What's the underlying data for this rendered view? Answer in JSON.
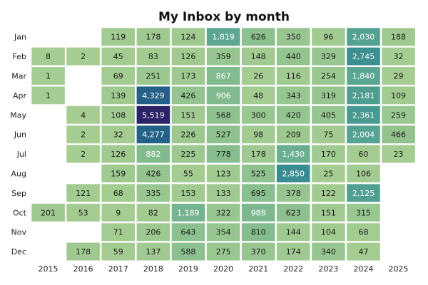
{
  "chart_data": {
    "type": "heatmap",
    "title": "My Inbox by month",
    "xlabel": "",
    "ylabel": "",
    "x_categories": [
      "2015",
      "2016",
      "2017",
      "2018",
      "2019",
      "2020",
      "2021",
      "2022",
      "2023",
      "2024",
      "2025"
    ],
    "y_categories": [
      "Jan",
      "Feb",
      "Mar",
      "Apr",
      "May",
      "Jun",
      "Jul",
      "Aug",
      "Sep",
      "Oct",
      "Nov",
      "Dec"
    ],
    "values": [
      [
        null,
        null,
        119,
        178,
        124,
        1819,
        626,
        350,
        96,
        2030,
        188
      ],
      [
        8,
        2,
        45,
        83,
        126,
        359,
        148,
        440,
        329,
        2745,
        32
      ],
      [
        1,
        null,
        69,
        251,
        173,
        867,
        26,
        116,
        254,
        1840,
        29
      ],
      [
        1,
        null,
        139,
        4329,
        426,
        906,
        48,
        343,
        319,
        2181,
        109
      ],
      [
        null,
        4,
        108,
        5519,
        151,
        568,
        300,
        420,
        405,
        2361,
        259
      ],
      [
        null,
        2,
        32,
        4277,
        226,
        527,
        98,
        209,
        75,
        2004,
        466
      ],
      [
        null,
        2,
        126,
        882,
        225,
        778,
        178,
        1430,
        170,
        60,
        23
      ],
      [
        null,
        null,
        159,
        426,
        55,
        123,
        525,
        2850,
        25,
        106,
        null
      ],
      [
        null,
        121,
        68,
        335,
        153,
        133,
        695,
        378,
        122,
        2125,
        null
      ],
      [
        201,
        53,
        9,
        82,
        1189,
        322,
        988,
        623,
        151,
        315,
        null
      ],
      [
        null,
        null,
        71,
        206,
        643,
        354,
        810,
        144,
        104,
        68,
        null
      ],
      [
        null,
        178,
        59,
        137,
        588,
        275,
        370,
        174,
        340,
        47,
        null
      ]
    ],
    "colormap": "crest",
    "grid": false,
    "legend": "none"
  }
}
